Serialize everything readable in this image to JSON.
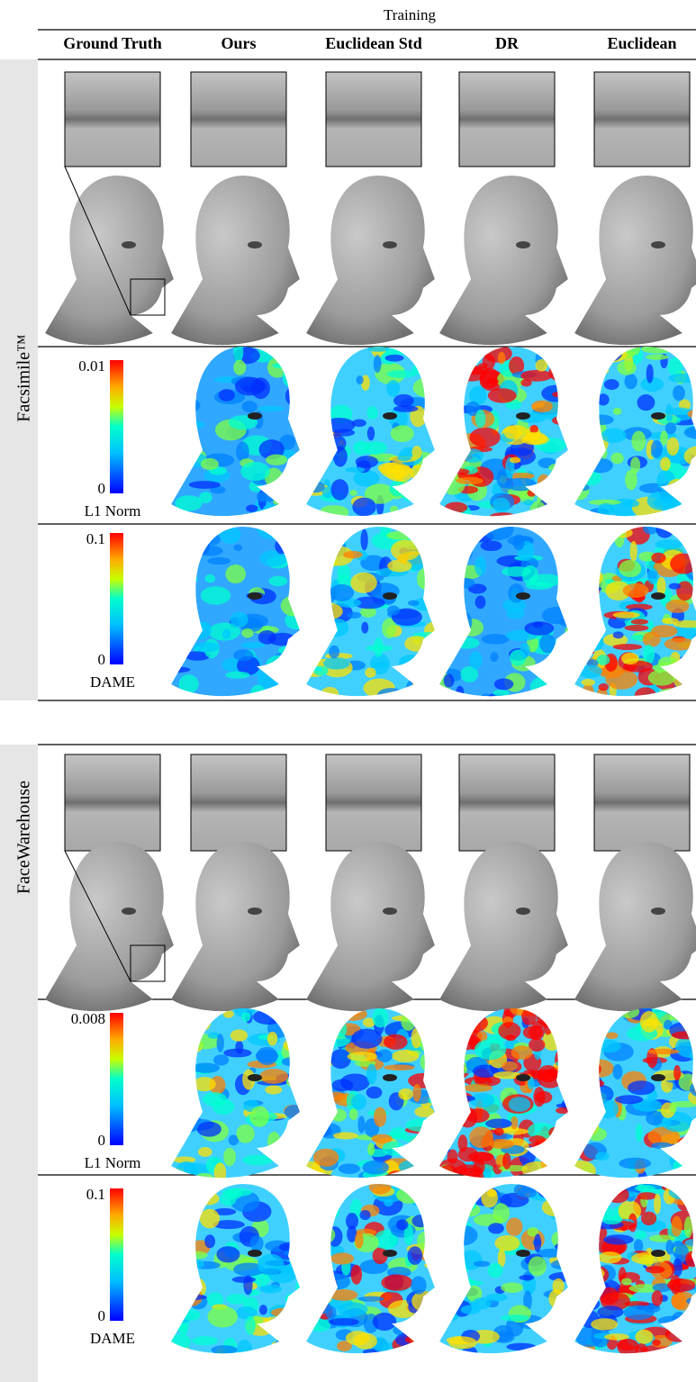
{
  "header": {
    "title": "Training",
    "columns": [
      "Ground Truth",
      "Ours",
      "Euclidean Std",
      "DR",
      "Euclidean"
    ]
  },
  "sections": [
    {
      "label": "Facsimile™",
      "colorbars": [
        {
          "max": 0.01,
          "min": 0,
          "label": "L1 Norm"
        },
        {
          "max": 0.1,
          "min": 0,
          "label": "DAME"
        }
      ]
    },
    {
      "label": "FaceWarehouse",
      "colorbars": [
        {
          "max": 0.008,
          "min": 0,
          "label": "L1 Norm"
        },
        {
          "max": 0.1,
          "min": 0,
          "label": "DAME"
        }
      ]
    }
  ]
}
